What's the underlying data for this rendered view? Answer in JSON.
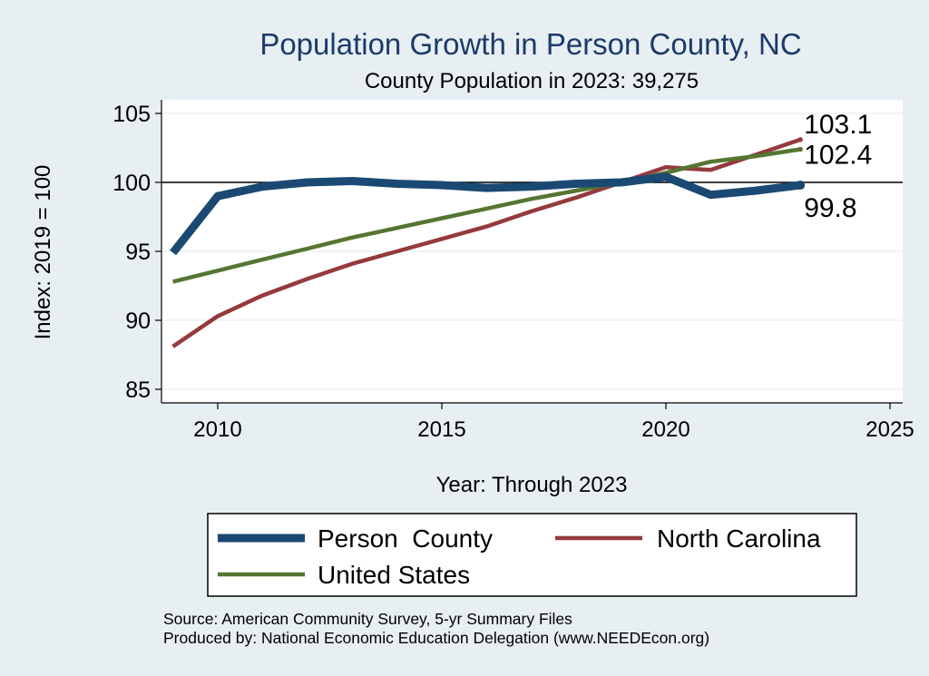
{
  "chart_data": {
    "type": "line",
    "title": "Population Growth in Person County, NC",
    "subtitle": "County Population in 2023: 39,275",
    "xlabel": "Year: Through 2023",
    "ylabel": "Index: 2019 = 100",
    "xlim": [
      2009,
      2025
    ],
    "ylim": [
      85,
      105
    ],
    "xticks": [
      "2010",
      "2015",
      "2020",
      "2025"
    ],
    "yticks": [
      "85",
      "90",
      "95",
      "100",
      "105"
    ],
    "reference_line": 100,
    "grid": true,
    "legend_position": "bottom",
    "x": [
      2009,
      2010,
      2011,
      2012,
      2013,
      2014,
      2015,
      2016,
      2017,
      2018,
      2019,
      2020,
      2021,
      2022,
      2023
    ],
    "series": [
      {
        "name": "Person  County",
        "color": "#1a4a73",
        "values": [
          94.9,
          99.0,
          99.7,
          100.0,
          100.1,
          99.9,
          99.8,
          99.6,
          99.7,
          99.9,
          100.0,
          100.4,
          99.1,
          99.4,
          99.8
        ],
        "end_label": "99.8"
      },
      {
        "name": "North Carolina",
        "color": "#953a3d",
        "values": [
          88.1,
          90.3,
          91.8,
          93.0,
          94.1,
          95.0,
          95.9,
          96.8,
          97.9,
          98.9,
          100.0,
          101.1,
          100.9,
          102.0,
          103.1
        ],
        "end_label": "103.1"
      },
      {
        "name": "United States",
        "color": "#557630",
        "values": [
          92.8,
          93.6,
          94.4,
          95.2,
          96.0,
          96.7,
          97.4,
          98.1,
          98.8,
          99.4,
          100.0,
          100.7,
          101.5,
          101.9,
          102.4
        ],
        "end_label": "102.4"
      }
    ]
  },
  "notes": {
    "source": "Source: American Community Survey, 5-yr Summary Files",
    "produced_by": "Produced by: National Economic Education Delegation (www.NEEDEcon.org)"
  }
}
